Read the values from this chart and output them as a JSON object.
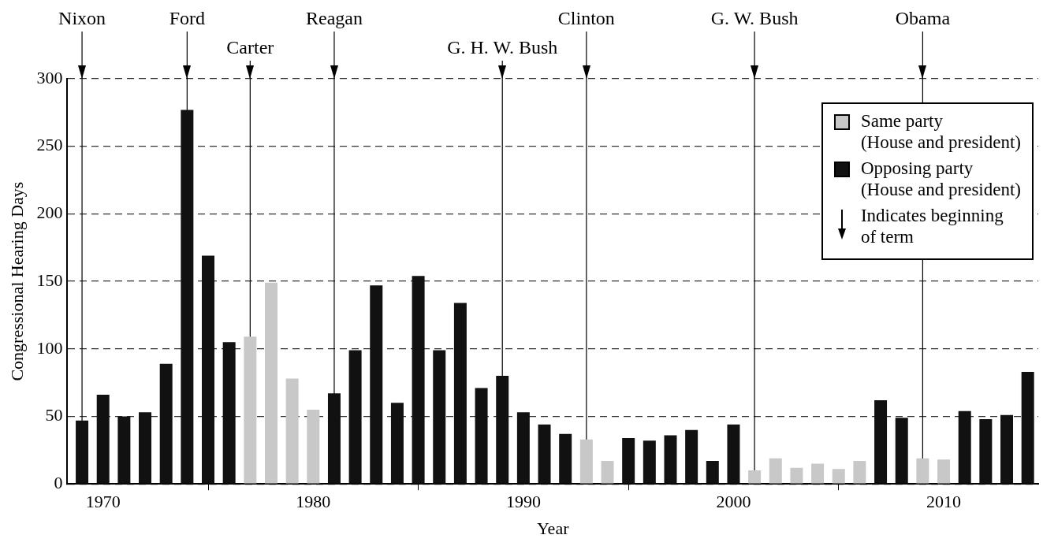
{
  "chart_data": {
    "type": "bar",
    "xlabel": "Year",
    "ylabel": "Congressional Hearing Days",
    "x": [
      1969,
      1970,
      1971,
      1972,
      1973,
      1974,
      1975,
      1976,
      1977,
      1978,
      1979,
      1980,
      1981,
      1982,
      1983,
      1984,
      1985,
      1986,
      1987,
      1988,
      1989,
      1990,
      1991,
      1992,
      1993,
      1994,
      1995,
      1996,
      1997,
      1998,
      1999,
      2000,
      2001,
      2002,
      2003,
      2004,
      2005,
      2006,
      2007,
      2008,
      2009,
      2010,
      2011,
      2012,
      2013,
      2014
    ],
    "series": [
      {
        "name": "Same party\n(House and president)",
        "color": "#c8c8c8",
        "values": [
          null,
          null,
          null,
          null,
          null,
          null,
          null,
          null,
          109,
          149,
          78,
          55,
          null,
          null,
          null,
          null,
          null,
          null,
          null,
          null,
          null,
          null,
          null,
          null,
          33,
          17,
          null,
          null,
          null,
          null,
          null,
          null,
          10,
          19,
          12,
          15,
          11,
          17,
          null,
          null,
          19,
          18,
          null,
          null,
          null,
          null
        ]
      },
      {
        "name": "Opposing party\n(House and president)",
        "color": "#111111",
        "values": [
          47,
          66,
          50,
          53,
          89,
          277,
          169,
          105,
          null,
          null,
          null,
          null,
          67,
          99,
          147,
          60,
          154,
          99,
          134,
          71,
          80,
          53,
          44,
          37,
          null,
          null,
          34,
          32,
          36,
          40,
          17,
          44,
          null,
          null,
          null,
          null,
          null,
          null,
          62,
          49,
          null,
          null,
          54,
          48,
          51,
          83
        ]
      }
    ],
    "xlim": [
      1968.3,
      2014.5
    ],
    "xticks": [
      1970,
      1980,
      1990,
      2000,
      2010
    ],
    "ylim": [
      0,
      300
    ],
    "yticks": [
      0,
      50,
      100,
      150,
      200,
      250,
      300
    ],
    "grid": "y",
    "legend": "top right",
    "ref_lines": [
      {
        "axis": "x",
        "value": 1969,
        "label": "Nixon",
        "color": "#000000"
      },
      {
        "axis": "x",
        "value": 1974,
        "label": "Ford",
        "color": "#000000"
      },
      {
        "axis": "x",
        "value": 1977,
        "label": "Carter",
        "color": "#000000"
      },
      {
        "axis": "x",
        "value": 1981,
        "label": "Reagan",
        "color": "#000000"
      },
      {
        "axis": "x",
        "value": 1989,
        "label": "G. H. W. Bush",
        "color": "#000000"
      },
      {
        "axis": "x",
        "value": 1993,
        "label": "Clinton",
        "color": "#000000"
      },
      {
        "axis": "x",
        "value": 2001,
        "label": "G. W. Bush",
        "color": "#000000"
      },
      {
        "axis": "x",
        "value": 2009,
        "label": "Obama",
        "color": "#000000"
      }
    ],
    "annotations": [
      "Indicates beginning of term"
    ]
  }
}
